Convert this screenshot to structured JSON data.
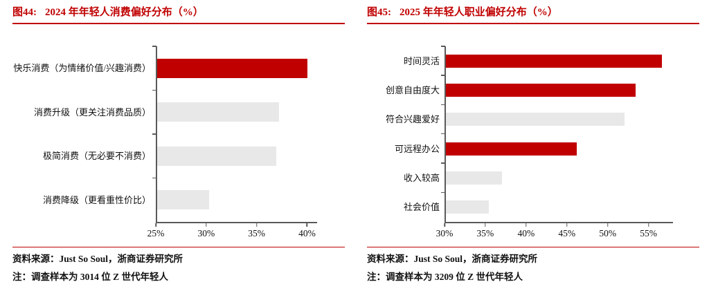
{
  "colors": {
    "accent_red": "#c00000",
    "bar_red": "#c00000",
    "bar_gray": "#e8e8e8",
    "axis": "#595959"
  },
  "chart_data": [
    {
      "type": "bar",
      "orientation": "horizontal",
      "figure_label": "图44:",
      "title": "2024 年年轻人消费偏好分布（%）",
      "categories": [
        "快乐消费（为情绪价值/兴趣消费）",
        "消费升级（更关注消费品质）",
        "极简消费（无必要不消费）",
        "消费降级（更看重性价比）"
      ],
      "values": [
        40.0,
        37.2,
        36.9,
        30.2
      ],
      "bar_colors": [
        "#c00000",
        "#e8e8e8",
        "#e8e8e8",
        "#e8e8e8"
      ],
      "xlim": [
        25,
        41
      ],
      "xticks": [
        {
          "value": 25,
          "label": "25%"
        },
        {
          "value": 30,
          "label": "30%"
        },
        {
          "value": 35,
          "label": "35%"
        },
        {
          "value": 40,
          "label": "40%"
        }
      ],
      "grid": false,
      "legend": false,
      "source": "资料来源：Just So Soul，浙商证券研究所",
      "note": "注：调查样本为 3014 位 Z 世代年轻人"
    },
    {
      "type": "bar",
      "orientation": "horizontal",
      "figure_label": "图45:",
      "title": "2025 年年轻人职业偏好分布（%）",
      "categories": [
        "时间灵活",
        "创意自由度大",
        "符合兴趣爱好",
        "可远程办公",
        "收入较高",
        "社会价值"
      ],
      "values": [
        56.6,
        53.4,
        52.0,
        46.1,
        36.9,
        35.3
      ],
      "bar_colors": [
        "#c00000",
        "#c00000",
        "#e8e8e8",
        "#c00000",
        "#e8e8e8",
        "#e8e8e8"
      ],
      "xlim": [
        30,
        58
      ],
      "xticks": [
        {
          "value": 30,
          "label": "30%"
        },
        {
          "value": 35,
          "label": "35%"
        },
        {
          "value": 40,
          "label": "40%"
        },
        {
          "value": 45,
          "label": "45%"
        },
        {
          "value": 50,
          "label": "50%"
        },
        {
          "value": 55,
          "label": "55%"
        }
      ],
      "grid": false,
      "legend": false,
      "source": "资料来源：Just So Soul，浙商证券研究所",
      "note": "注：调查样本为 3209 位 Z 世代年轻人"
    }
  ]
}
